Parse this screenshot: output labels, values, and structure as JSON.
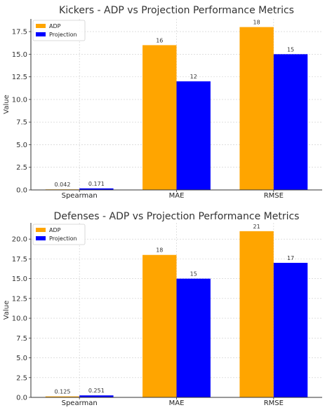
{
  "chart_data": [
    {
      "type": "bar",
      "title": "Kickers - ADP vs Projection Performance Metrics",
      "xlabel": "",
      "ylabel": "Value",
      "categories": [
        "Spearman",
        "MAE",
        "RMSE"
      ],
      "series": [
        {
          "name": "ADP",
          "color": "#FFA500",
          "values": [
            0.042,
            16,
            18
          ]
        },
        {
          "name": "Projection",
          "color": "#0000FF",
          "values": [
            0.171,
            12,
            15
          ]
        }
      ],
      "ylim": [
        0,
        18.9
      ],
      "yticks": [
        0,
        2.5,
        5,
        7.5,
        10,
        12.5,
        15,
        17.5
      ],
      "ytick_labels": [
        "0.0",
        "2.5",
        "5.0",
        "7.5",
        "10.0",
        "12.5",
        "15.0",
        "17.5"
      ],
      "data_labels": [
        [
          "0.042",
          "16",
          "18"
        ],
        [
          "0.171",
          "12",
          "15"
        ]
      ],
      "grid": true,
      "legend": "top-left"
    },
    {
      "type": "bar",
      "title": "Defenses - ADP vs Projection Performance Metrics",
      "xlabel": "",
      "ylabel": "Value",
      "categories": [
        "Spearman",
        "MAE",
        "RMSE"
      ],
      "series": [
        {
          "name": "ADP",
          "color": "#FFA500",
          "values": [
            0.125,
            18,
            21
          ]
        },
        {
          "name": "Projection",
          "color": "#0000FF",
          "values": [
            0.251,
            15,
            17
          ]
        }
      ],
      "ylim": [
        0,
        22.05
      ],
      "yticks": [
        0,
        2.5,
        5,
        7.5,
        10,
        12.5,
        15,
        17.5,
        20
      ],
      "ytick_labels": [
        "0.0",
        "2.5",
        "5.0",
        "7.5",
        "10.0",
        "12.5",
        "15.0",
        "17.5",
        "20.0"
      ],
      "data_labels": [
        [
          "0.125",
          "18",
          "21"
        ],
        [
          "0.251",
          "15",
          "17"
        ]
      ],
      "grid": true,
      "legend": "top-left"
    }
  ]
}
